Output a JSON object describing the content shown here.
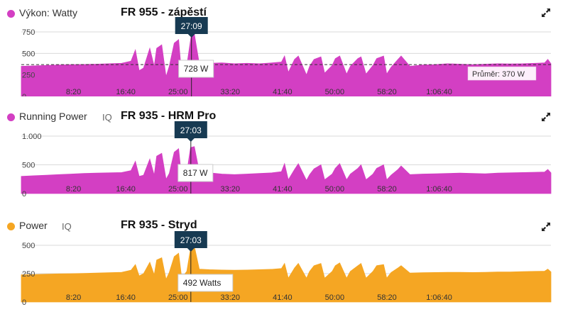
{
  "colors": {
    "magenta": "#d33fc3",
    "orange": "#f5a623",
    "badge": "#173a52",
    "grid": "#d9d9d9"
  },
  "panels": [
    {
      "metric": "Výkon: Watty",
      "iq": "",
      "device": "FR 955 - zápěstí",
      "expand_icon": "expand-icon",
      "cursor_time": "27:09",
      "tooltip": "728 W",
      "avg_label": "Průměr: 370 W",
      "chart_data": {
        "type": "area",
        "color": "#d33fc3",
        "x_unit": "minutes",
        "xlim": [
          0,
          84.5
        ],
        "ylim": [
          0,
          750
        ],
        "y_ticks": [
          "750",
          "500",
          "250",
          "0"
        ],
        "y_tick_values": [
          750,
          500,
          250,
          0
        ],
        "x_ticks": [
          "8:20",
          "16:40",
          "25:00",
          "33:20",
          "41:40",
          "50:00",
          "58:20",
          "1:06:40"
        ],
        "x_tick_values": [
          8.333,
          16.667,
          25,
          33.333,
          41.667,
          50,
          58.333,
          66.667
        ],
        "cursor_x": 27.15,
        "average": 370,
        "x": [
          0,
          2,
          4,
          6,
          8,
          10,
          12,
          14,
          16,
          17.5,
          18.2,
          18.8,
          19.5,
          20.5,
          21.2,
          21.6,
          22.4,
          23.1,
          23.6,
          24.4,
          25.1,
          25.6,
          26.4,
          27.1,
          27.6,
          28.4,
          30,
          32,
          34,
          36,
          38,
          40,
          41.5,
          42.0,
          42.6,
          43.6,
          44.2,
          45.5,
          46.0,
          46.7,
          47.8,
          48.4,
          49.6,
          50.1,
          50.8,
          51.9,
          52.5,
          53.7,
          54.2,
          55.0,
          56.1,
          56.7,
          57.8,
          58.3,
          59.0,
          60.1,
          60.6,
          62,
          64,
          66,
          68,
          70,
          72,
          74,
          76,
          78,
          80,
          82,
          83.5,
          84,
          84.5
        ],
        "y": [
          350,
          355,
          360,
          365,
          370,
          372,
          375,
          380,
          385,
          410,
          540,
          300,
          330,
          560,
          350,
          560,
          600,
          230,
          350,
          620,
          660,
          240,
          360,
          700,
          728,
          380,
          385,
          390,
          380,
          385,
          380,
          390,
          400,
          470,
          280,
          430,
          470,
          250,
          350,
          430,
          460,
          270,
          360,
          440,
          470,
          260,
          350,
          440,
          460,
          260,
          360,
          440,
          470,
          260,
          340,
          430,
          470,
          350,
          365,
          370,
          380,
          375,
          370,
          375,
          380,
          378,
          380,
          385,
          390,
          430,
          380
        ]
      }
    },
    {
      "metric": "Running Power",
      "iq": "IQ",
      "device": "FR 935 - HRM Pro",
      "expand_icon": "expand-icon",
      "cursor_time": "27:03",
      "tooltip": "817 W",
      "avg_label": "",
      "chart_data": {
        "type": "area",
        "color": "#d33fc3",
        "x_unit": "minutes",
        "xlim": [
          0,
          84.5
        ],
        "ylim": [
          0,
          1000
        ],
        "y_ticks": [
          "1.000",
          "500",
          "0"
        ],
        "y_tick_values": [
          1000,
          500,
          0
        ],
        "x_ticks": [
          "8:20",
          "16:40",
          "25:00",
          "33:20",
          "41:40",
          "50:00",
          "58:20",
          "1:06:40"
        ],
        "x_tick_values": [
          8.333,
          16.667,
          25,
          33.333,
          41.667,
          50,
          58.333,
          66.667
        ],
        "cursor_x": 27.05,
        "x": [
          0,
          2,
          4,
          6,
          8,
          10,
          12,
          14,
          16,
          17.5,
          18.2,
          18.8,
          19.5,
          20.5,
          21.2,
          21.6,
          22.4,
          23.1,
          23.6,
          24.4,
          25.1,
          25.6,
          26.4,
          27.0,
          27.6,
          28.4,
          30,
          32,
          34,
          36,
          38,
          40,
          41.5,
          42.0,
          42.6,
          43.6,
          44.2,
          45.5,
          46.0,
          46.7,
          47.8,
          48.4,
          49.6,
          50.1,
          50.8,
          51.9,
          52.5,
          53.7,
          54.2,
          55.0,
          56.1,
          56.7,
          57.8,
          58.3,
          59.0,
          60.1,
          60.6,
          62,
          64,
          66,
          68,
          70,
          72,
          74,
          76,
          78,
          80,
          82,
          83.5,
          84,
          84.5
        ],
        "y": [
          300,
          310,
          320,
          330,
          340,
          350,
          355,
          360,
          365,
          400,
          560,
          300,
          320,
          600,
          320,
          650,
          700,
          250,
          350,
          720,
          780,
          260,
          360,
          800,
          817,
          380,
          360,
          340,
          330,
          340,
          350,
          360,
          380,
          520,
          240,
          420,
          520,
          230,
          330,
          430,
          500,
          240,
          340,
          440,
          520,
          240,
          340,
          440,
          500,
          240,
          340,
          440,
          500,
          240,
          320,
          420,
          480,
          330,
          340,
          345,
          350,
          355,
          350,
          345,
          355,
          360,
          365,
          370,
          375,
          420,
          360
        ]
      }
    },
    {
      "metric": "Power",
      "iq": "IQ",
      "device": "FR 935 - Stryd",
      "expand_icon": "expand-icon",
      "cursor_time": "27:03",
      "tooltip": "492 Watts",
      "avg_label": "",
      "chart_data": {
        "type": "area",
        "color": "#f5a623",
        "x_unit": "minutes",
        "xlim": [
          0,
          84.5
        ],
        "ylim": [
          0,
          500
        ],
        "y_ticks": [
          "500",
          "250",
          "0"
        ],
        "y_tick_values": [
          500,
          250,
          0
        ],
        "x_ticks": [
          "8:20",
          "16:40",
          "25:00",
          "33:20",
          "41:40",
          "50:00",
          "58:20",
          "1:06:40"
        ],
        "x_tick_values": [
          8.333,
          16.667,
          25,
          33.333,
          41.667,
          50,
          58.333,
          66.667
        ],
        "cursor_x": 27.05,
        "x": [
          0,
          2,
          4,
          6,
          8,
          10,
          12,
          14,
          16,
          17.5,
          18.2,
          18.8,
          19.5,
          20.5,
          21.2,
          21.6,
          22.4,
          23.1,
          23.6,
          24.4,
          25.1,
          25.6,
          26.4,
          27.0,
          27.6,
          28.4,
          30,
          32,
          34,
          36,
          38,
          40,
          41.5,
          42.0,
          42.6,
          43.6,
          44.2,
          45.5,
          46.0,
          46.7,
          47.8,
          48.4,
          49.6,
          50.1,
          50.8,
          51.9,
          52.5,
          53.7,
          54.2,
          55.0,
          56.1,
          56.7,
          57.8,
          58.3,
          59.0,
          60.1,
          60.6,
          62,
          64,
          66,
          68,
          70,
          72,
          74,
          76,
          78,
          80,
          82,
          83.5,
          84,
          84.5
        ],
        "y": [
          240,
          242,
          245,
          248,
          250,
          252,
          255,
          258,
          262,
          280,
          330,
          230,
          250,
          350,
          240,
          370,
          390,
          200,
          260,
          400,
          430,
          210,
          270,
          470,
          492,
          290,
          285,
          282,
          280,
          282,
          285,
          288,
          295,
          340,
          210,
          300,
          340,
          210,
          270,
          320,
          340,
          210,
          270,
          320,
          345,
          210,
          270,
          320,
          340,
          210,
          270,
          320,
          330,
          210,
          260,
          300,
          320,
          255,
          258,
          260,
          262,
          262,
          260,
          262,
          265,
          265,
          268,
          270,
          272,
          290,
          265
        ]
      }
    }
  ]
}
